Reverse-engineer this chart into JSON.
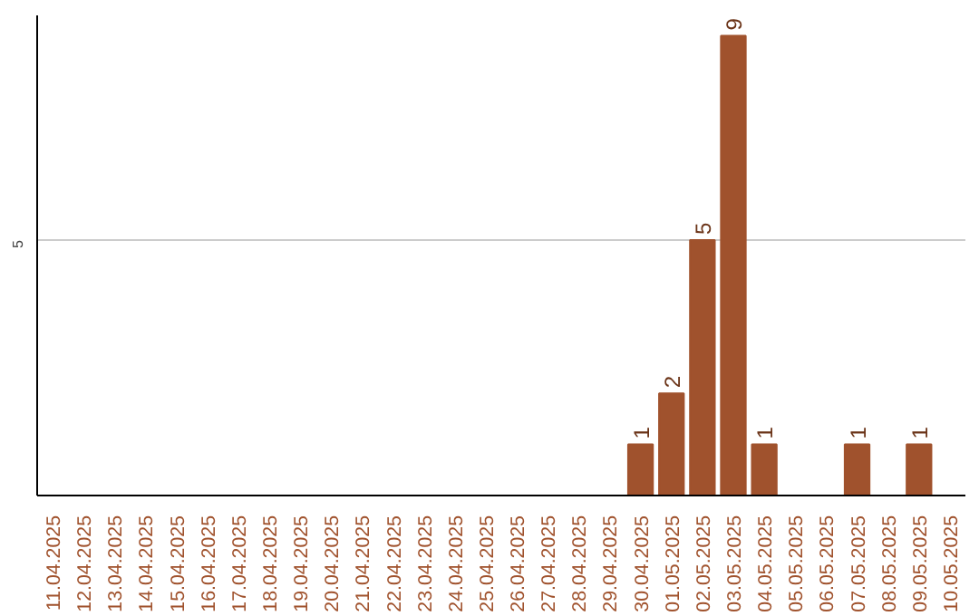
{
  "chart_data": {
    "type": "bar",
    "categories": [
      "11.04.2025",
      "12.04.2025",
      "13.04.2025",
      "14.04.2025",
      "15.04.2025",
      "16.04.2025",
      "17.04.2025",
      "18.04.2025",
      "19.04.2025",
      "20.04.2025",
      "21.04.2025",
      "22.04.2025",
      "23.04.2025",
      "24.04.2025",
      "25.04.2025",
      "26.04.2025",
      "27.04.2025",
      "28.04.2025",
      "29.04.2025",
      "30.04.2025",
      "01.05.2025",
      "02.05.2025",
      "03.05.2025",
      "04.05.2025",
      "05.05.2025",
      "06.05.2025",
      "07.05.2025",
      "08.05.2025",
      "09.05.2025",
      "10.05.2025"
    ],
    "values": [
      null,
      null,
      null,
      null,
      null,
      null,
      null,
      null,
      null,
      null,
      null,
      null,
      null,
      null,
      null,
      null,
      null,
      null,
      null,
      1,
      2,
      5,
      9,
      1,
      null,
      null,
      1,
      null,
      1,
      null
    ],
    "value_labels": [
      null,
      null,
      null,
      null,
      null,
      null,
      null,
      null,
      null,
      null,
      null,
      null,
      null,
      null,
      null,
      null,
      null,
      null,
      null,
      "1",
      "2",
      "5",
      "9",
      "1",
      null,
      null,
      "1",
      null,
      "1",
      null
    ],
    "color": "#a0522d",
    "ylim": [
      0,
      9.4
    ],
    "ref_lines": [
      {
        "axis": "y",
        "value": 5,
        "label": "5",
        "color": "#cccccc"
      }
    ]
  }
}
